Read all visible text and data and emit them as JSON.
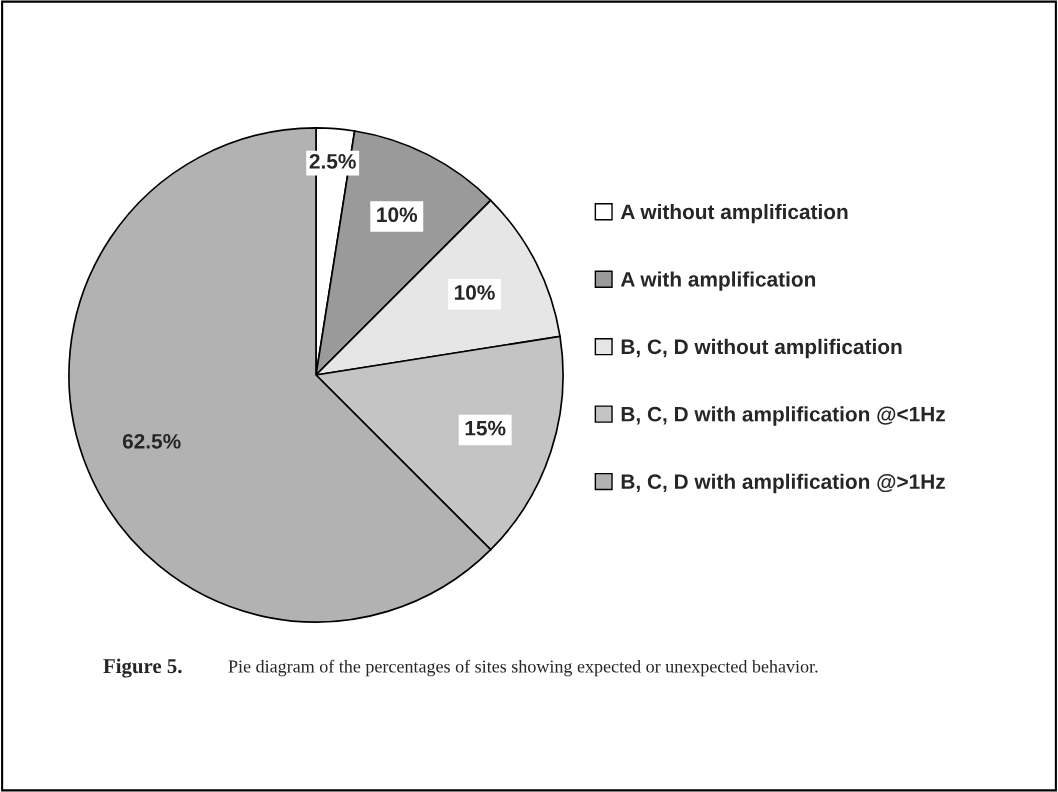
{
  "chart_data": {
    "type": "pie",
    "categories": [
      "A without amplification",
      "A with amplification",
      "B, C, D without amplification",
      "B, C, D with amplification @<1Hz",
      "B, C, D with amplification @>1Hz"
    ],
    "values": [
      2.5,
      10,
      10,
      15,
      62.5
    ],
    "value_labels": [
      "2.5%",
      "10%",
      "10%",
      "15%",
      "62.5%"
    ],
    "colors": [
      "#ffffff",
      "#9a9a9a",
      "#e6e6e6",
      "#c4c4c4",
      "#b2b2b2"
    ],
    "legend": "right",
    "annotations": [
      "Figure 5.",
      "Pie diagram of the percentages of sites showing expected or unexpected behavior."
    ]
  }
}
